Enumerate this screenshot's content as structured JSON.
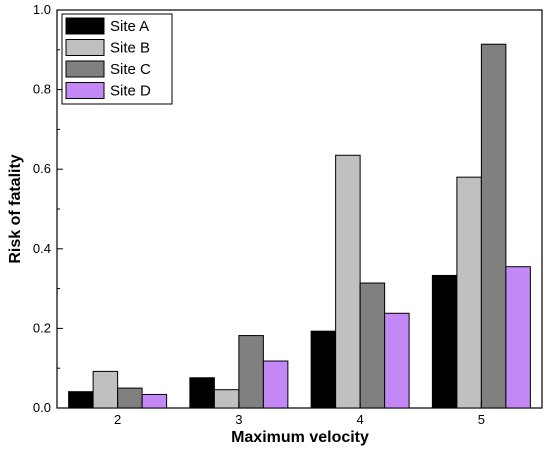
{
  "chart_data": {
    "type": "bar",
    "title": "",
    "xlabel": "Maximum velocity",
    "ylabel": "Risk of fatality",
    "categories": [
      "2",
      "3",
      "4",
      "5"
    ],
    "ylim": [
      0,
      1.0
    ],
    "yticks": [
      "0.0",
      "0.2",
      "0.4",
      "0.6",
      "0.8",
      "1.0"
    ],
    "grid": false,
    "legend_position": "top-left",
    "series": [
      {
        "name": "Site A",
        "color": "#000000",
        "values": [
          0.041,
          0.076,
          0.193,
          0.333
        ]
      },
      {
        "name": "Site B",
        "color": "#c0c0c0",
        "values": [
          0.092,
          0.046,
          0.635,
          0.58
        ]
      },
      {
        "name": "Site C",
        "color": "#808080",
        "values": [
          0.05,
          0.182,
          0.314,
          0.914
        ]
      },
      {
        "name": "Site D",
        "color": "#c388f5",
        "values": [
          0.034,
          0.118,
          0.238,
          0.355
        ]
      }
    ]
  }
}
